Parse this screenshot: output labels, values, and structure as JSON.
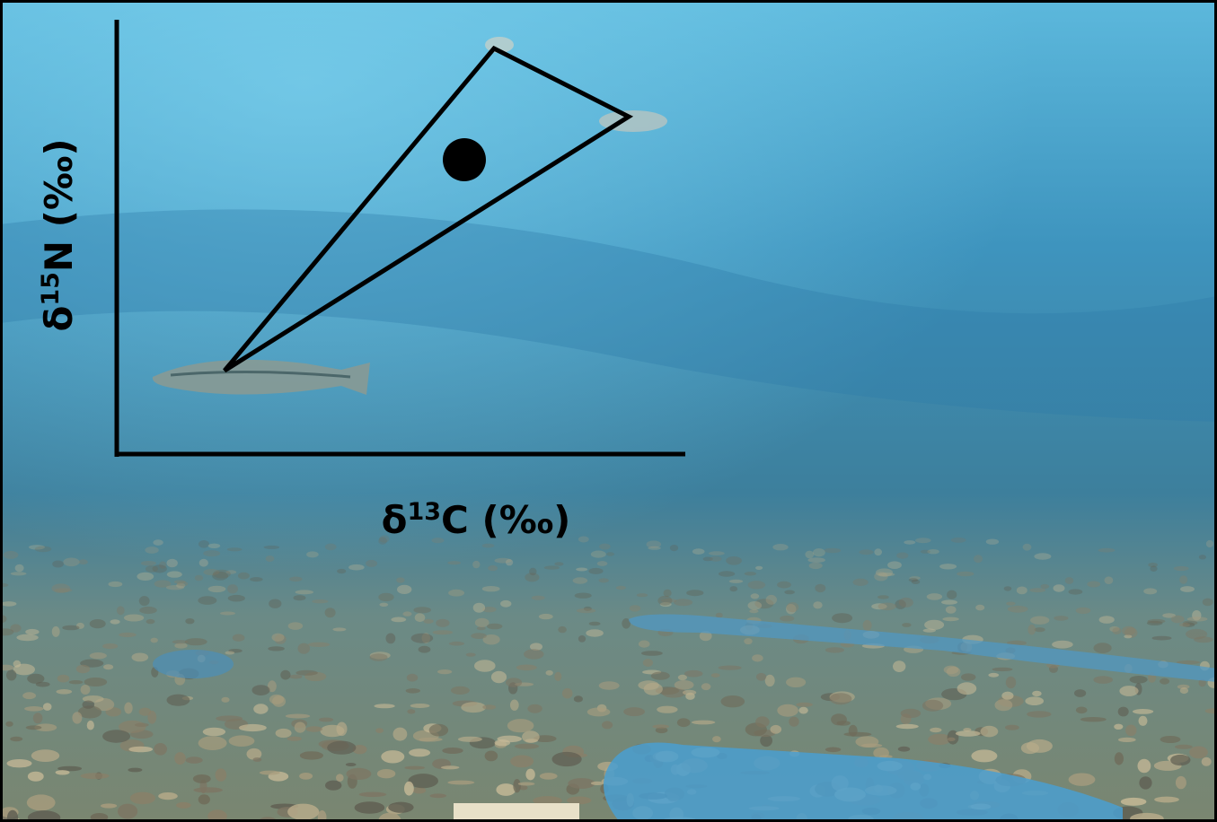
{
  "x_axis_label": {
    "symbol": "δ",
    "superscript": "13",
    "rest": "C (‰)"
  },
  "y_axis_label": {
    "symbol": "δ",
    "superscript": "15",
    "rest": "N (‰)"
  }
}
